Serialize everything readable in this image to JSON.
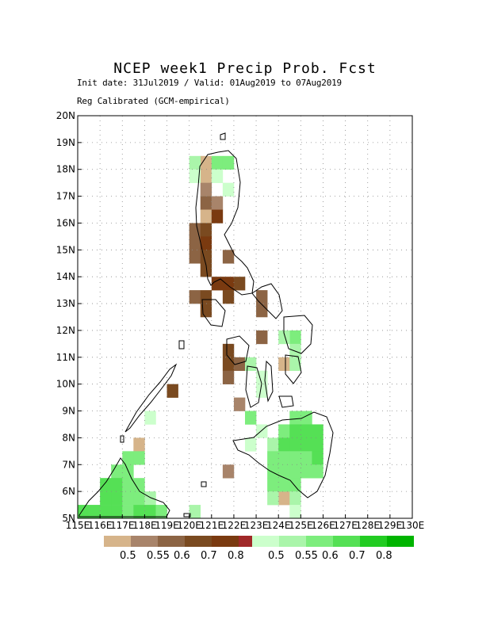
{
  "header": {
    "title": "NCEP week1 Precip Prob. Fcst",
    "init_line": "Init date: 31Jul2019 / Valid: 01Aug2019 to 07Aug2019",
    "calib_line": "Reg Calibrated (GCM-empirical)"
  },
  "map": {
    "lon_range": [
      115,
      130
    ],
    "lat_range": [
      5,
      20
    ],
    "lon_tick_labels": [
      "115E",
      "116E",
      "117E",
      "118E",
      "119E",
      "120E",
      "121E",
      "122E",
      "123E",
      "124E",
      "125E",
      "126E",
      "127E",
      "128E",
      "129E",
      "130E"
    ],
    "lat_tick_labels": [
      "5N",
      "6N",
      "7N",
      "8N",
      "9N",
      "10N",
      "11N",
      "12N",
      "13N",
      "14N",
      "15N",
      "16N",
      "17N",
      "18N",
      "19N",
      "20N"
    ],
    "grid": true,
    "cell_size_deg": 0.5,
    "dry_cells": [
      {
        "lon": 120.5,
        "lat": 17.5,
        "level": 0.5
      },
      {
        "lon": 120.5,
        "lat": 17.0,
        "level": 0.55
      },
      {
        "lon": 120.5,
        "lat": 16.5,
        "level": 0.6
      },
      {
        "lon": 121.0,
        "lat": 16.5,
        "level": 0.55
      },
      {
        "lon": 120.5,
        "lat": 16.0,
        "level": 0.5
      },
      {
        "lon": 121.0,
        "lat": 16.0,
        "level": 0.8
      },
      {
        "lon": 120.0,
        "lat": 15.5,
        "level": 0.6
      },
      {
        "lon": 120.5,
        "lat": 15.5,
        "level": 0.7
      },
      {
        "lon": 120.0,
        "lat": 15.0,
        "level": 0.6
      },
      {
        "lon": 120.5,
        "lat": 15.0,
        "level": 0.8
      },
      {
        "lon": 120.0,
        "lat": 14.5,
        "level": 0.6
      },
      {
        "lon": 120.5,
        "lat": 14.5,
        "level": 0.7
      },
      {
        "lon": 120.5,
        "lat": 14.0,
        "level": 0.7
      },
      {
        "lon": 121.5,
        "lat": 14.5,
        "level": 0.6
      },
      {
        "lon": 121.0,
        "lat": 13.5,
        "level": 0.8
      },
      {
        "lon": 121.5,
        "lat": 13.5,
        "level": 0.8
      },
      {
        "lon": 122.0,
        "lat": 13.5,
        "level": 0.7
      },
      {
        "lon": 120.0,
        "lat": 13.0,
        "level": 0.6
      },
      {
        "lon": 120.5,
        "lat": 13.0,
        "level": 0.7
      },
      {
        "lon": 121.5,
        "lat": 13.0,
        "level": 0.7
      },
      {
        "lon": 120.5,
        "lat": 12.5,
        "level": 0.7
      },
      {
        "lon": 123.0,
        "lat": 13.0,
        "level": 0.6
      },
      {
        "lon": 123.0,
        "lat": 12.5,
        "level": 0.6
      },
      {
        "lon": 123.0,
        "lat": 11.5,
        "level": 0.6
      },
      {
        "lon": 121.5,
        "lat": 11.0,
        "level": 0.7
      },
      {
        "lon": 121.5,
        "lat": 10.5,
        "level": 0.7
      },
      {
        "lon": 122.0,
        "lat": 10.5,
        "level": 0.6
      },
      {
        "lon": 121.5,
        "lat": 10.0,
        "level": 0.6
      },
      {
        "lon": 119.0,
        "lat": 9.5,
        "level": 0.7
      },
      {
        "lon": 122.0,
        "lat": 9.0,
        "level": 0.55
      },
      {
        "lon": 117.5,
        "lat": 7.5,
        "level": 0.5
      },
      {
        "lon": 121.5,
        "lat": 6.5,
        "level": 0.55
      },
      {
        "lon": 124.0,
        "lat": 5.5,
        "level": 0.5
      },
      {
        "lon": 124.0,
        "lat": 10.5,
        "level": 0.5
      },
      {
        "lon": 120.5,
        "lat": 18.0,
        "level": 0.5
      }
    ],
    "wet_cells": [
      {
        "lon": 120.0,
        "lat": 18.0,
        "level": 0.55
      },
      {
        "lon": 121.0,
        "lat": 18.0,
        "level": 0.6
      },
      {
        "lon": 121.5,
        "lat": 18.0,
        "level": 0.6
      },
      {
        "lon": 121.0,
        "lat": 17.5,
        "level": 0.5
      },
      {
        "lon": 121.5,
        "lat": 17.0,
        "level": 0.5
      },
      {
        "lon": 120.0,
        "lat": 17.5,
        "level": 0.5
      },
      {
        "lon": 124.5,
        "lat": 11.5,
        "level": 0.6
      },
      {
        "lon": 124.0,
        "lat": 11.5,
        "level": 0.55
      },
      {
        "lon": 124.5,
        "lat": 11.0,
        "level": 0.55
      },
      {
        "lon": 124.5,
        "lat": 10.5,
        "level": 0.55
      },
      {
        "lon": 122.5,
        "lat": 10.5,
        "level": 0.55
      },
      {
        "lon": 123.0,
        "lat": 10.0,
        "level": 0.5
      },
      {
        "lon": 123.0,
        "lat": 9.5,
        "level": 0.5
      },
      {
        "lon": 118.0,
        "lat": 8.5,
        "level": 0.5
      },
      {
        "lon": 122.5,
        "lat": 8.5,
        "level": 0.6
      },
      {
        "lon": 124.5,
        "lat": 8.5,
        "level": 0.6
      },
      {
        "lon": 125.0,
        "lat": 8.5,
        "level": 0.6
      },
      {
        "lon": 122.5,
        "lat": 7.5,
        "level": 0.5
      },
      {
        "lon": 123.0,
        "lat": 8.0,
        "level": 0.5
      },
      {
        "lon": 123.5,
        "lat": 7.5,
        "level": 0.55
      },
      {
        "lon": 124.0,
        "lat": 8.0,
        "level": 0.6
      },
      {
        "lon": 124.5,
        "lat": 8.0,
        "level": 0.7
      },
      {
        "lon": 125.0,
        "lat": 8.0,
        "level": 0.7
      },
      {
        "lon": 125.5,
        "lat": 8.0,
        "level": 0.7
      },
      {
        "lon": 124.0,
        "lat": 7.5,
        "level": 0.7
      },
      {
        "lon": 124.5,
        "lat": 7.5,
        "level": 0.7
      },
      {
        "lon": 125.0,
        "lat": 7.5,
        "level": 0.7
      },
      {
        "lon": 125.5,
        "lat": 7.5,
        "level": 0.7
      },
      {
        "lon": 123.5,
        "lat": 7.0,
        "level": 0.6
      },
      {
        "lon": 124.0,
        "lat": 7.0,
        "level": 0.6
      },
      {
        "lon": 124.5,
        "lat": 7.0,
        "level": 0.6
      },
      {
        "lon": 125.0,
        "lat": 7.0,
        "level": 0.6
      },
      {
        "lon": 125.5,
        "lat": 7.0,
        "level": 0.7
      },
      {
        "lon": 123.5,
        "lat": 6.5,
        "level": 0.6
      },
      {
        "lon": 124.0,
        "lat": 6.5,
        "level": 0.6
      },
      {
        "lon": 124.5,
        "lat": 6.5,
        "level": 0.6
      },
      {
        "lon": 125.0,
        "lat": 6.5,
        "level": 0.6
      },
      {
        "lon": 125.5,
        "lat": 6.5,
        "level": 0.6
      },
      {
        "lon": 123.5,
        "lat": 6.0,
        "level": 0.6
      },
      {
        "lon": 124.0,
        "lat": 6.0,
        "level": 0.6
      },
      {
        "lon": 124.5,
        "lat": 6.0,
        "level": 0.6
      },
      {
        "lon": 123.5,
        "lat": 5.5,
        "level": 0.55
      },
      {
        "lon": 124.5,
        "lat": 5.5,
        "level": 0.55
      },
      {
        "lon": 124.5,
        "lat": 5.0,
        "level": 0.5
      },
      {
        "lon": 117.0,
        "lat": 7.0,
        "level": 0.6
      },
      {
        "lon": 117.5,
        "lat": 7.0,
        "level": 0.6
      },
      {
        "lon": 116.5,
        "lat": 6.5,
        "level": 0.6
      },
      {
        "lon": 117.0,
        "lat": 6.5,
        "level": 0.6
      },
      {
        "lon": 116.5,
        "lat": 6.0,
        "level": 0.7
      },
      {
        "lon": 117.0,
        "lat": 6.0,
        "level": 0.6
      },
      {
        "lon": 117.5,
        "lat": 6.0,
        "level": 0.6
      },
      {
        "lon": 116.0,
        "lat": 6.0,
        "level": 0.7
      },
      {
        "lon": 116.0,
        "lat": 5.5,
        "level": 0.7
      },
      {
        "lon": 116.5,
        "lat": 5.5,
        "level": 0.7
      },
      {
        "lon": 117.0,
        "lat": 5.5,
        "level": 0.6
      },
      {
        "lon": 117.5,
        "lat": 5.5,
        "level": 0.6
      },
      {
        "lon": 118.0,
        "lat": 5.5,
        "level": 0.55
      },
      {
        "lon": 115.5,
        "lat": 5.0,
        "level": 0.7
      },
      {
        "lon": 116.0,
        "lat": 5.0,
        "level": 0.7
      },
      {
        "lon": 116.5,
        "lat": 5.0,
        "level": 0.7
      },
      {
        "lon": 117.0,
        "lat": 5.0,
        "level": 0.6
      },
      {
        "lon": 117.5,
        "lat": 5.0,
        "level": 0.7
      },
      {
        "lon": 118.0,
        "lat": 5.0,
        "level": 0.7
      },
      {
        "lon": 118.5,
        "lat": 5.0,
        "level": 0.6
      },
      {
        "lon": 115.0,
        "lat": 5.0,
        "level": 0.7
      },
      {
        "lon": 120.0,
        "lat": 5.0,
        "level": 0.55
      }
    ]
  },
  "legends": {
    "dry": {
      "colors": [
        "#d6b48a",
        "#a8846a",
        "#8c6444",
        "#7a4a20",
        "#7a3a10",
        "#a02828"
      ],
      "labels": [
        "0.5",
        "0.55",
        "0.6",
        "0.7",
        "0.8"
      ]
    },
    "wet": {
      "colors": [
        "#ccffcc",
        "#aaf5aa",
        "#7ded7d",
        "#55e055",
        "#22cc22",
        "#00b400"
      ],
      "labels": [
        "0.5",
        "0.55",
        "0.6",
        "0.7",
        "0.8"
      ]
    }
  }
}
